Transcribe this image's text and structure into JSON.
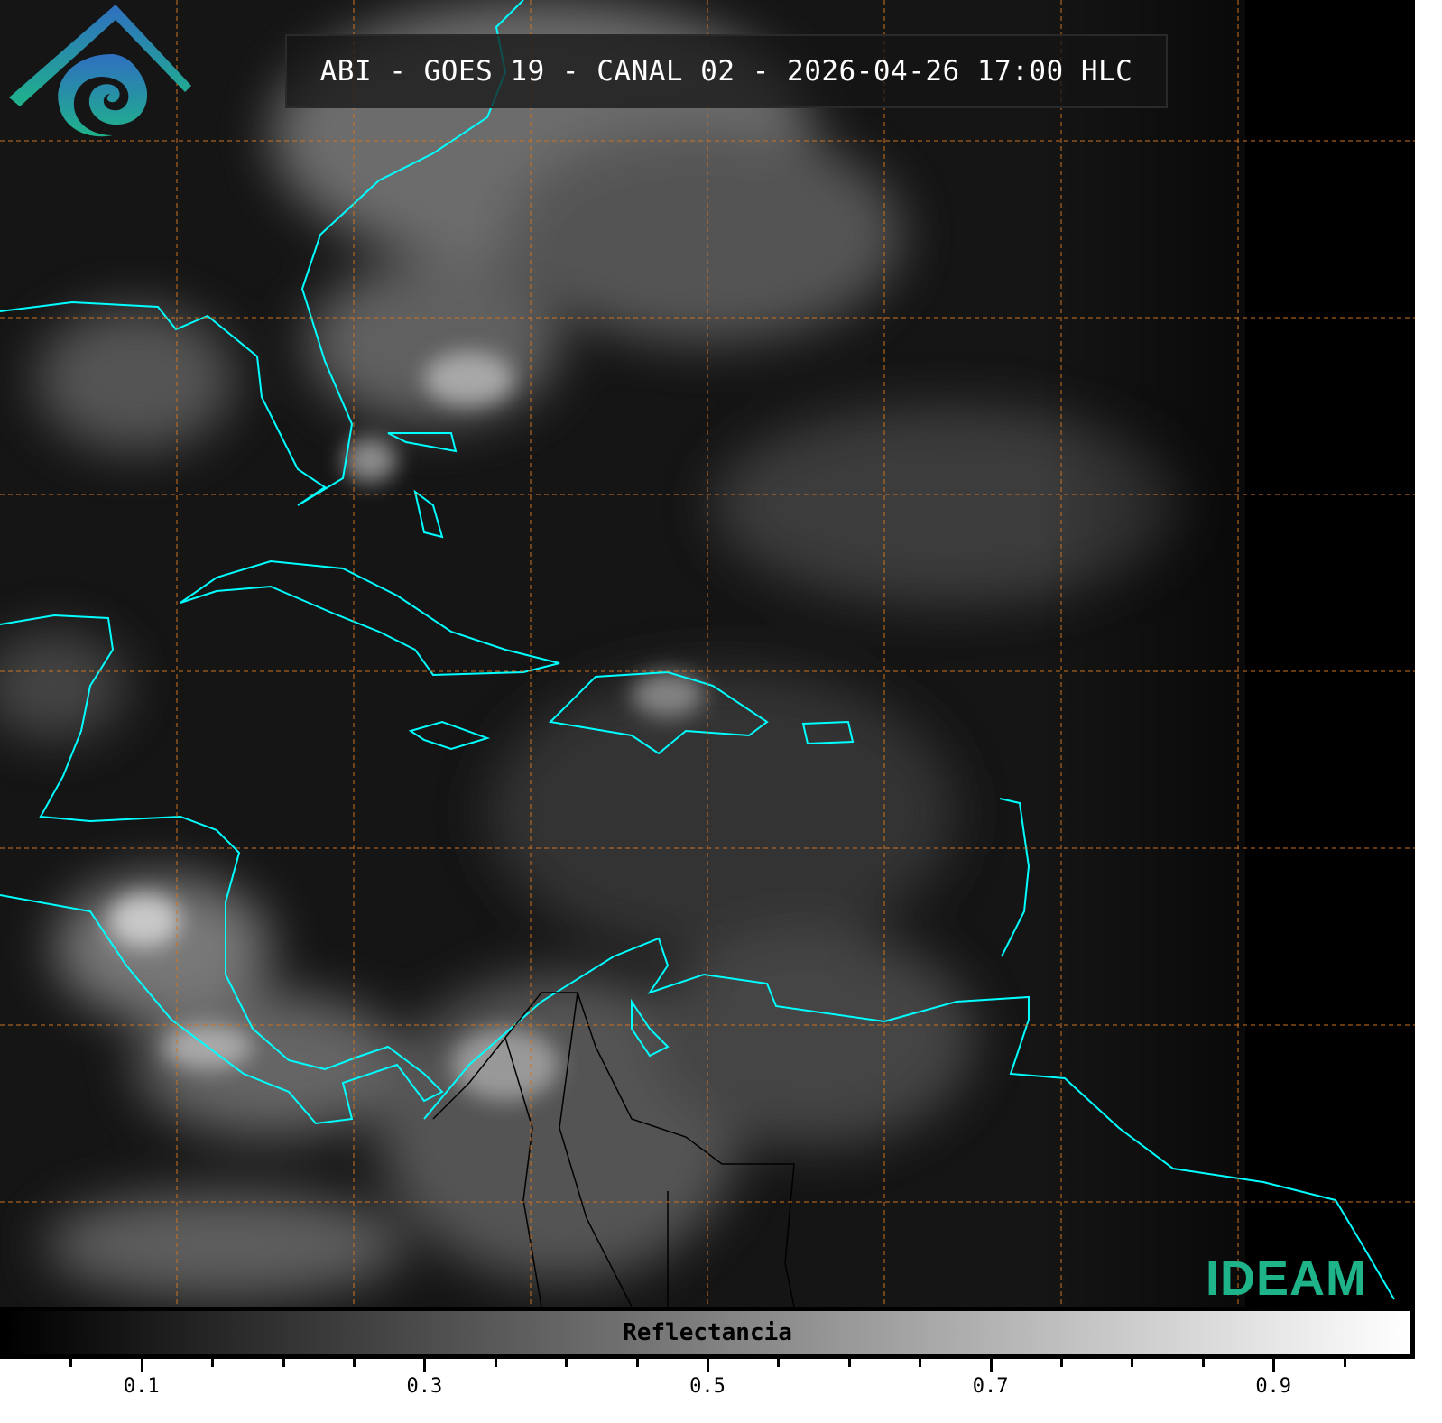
{
  "title": "ABI - GOES 19 - CANAL 02 - 2026-04-26 17:00 HLC",
  "logo": {
    "text": "IDEAM",
    "colors": [
      "#2f6fc0",
      "#1fb38a"
    ]
  },
  "map": {
    "coastline_color": "#00ffff",
    "border_color": "#000000",
    "grid_color": "#d07020",
    "grid_style": "dashed",
    "background": "grayscale reflectance"
  },
  "colorbar": {
    "label": "Reflectancia",
    "range": [
      0,
      1
    ],
    "colormap": "grayscale",
    "tick_labels": [
      "0.1",
      "0.3",
      "0.5",
      "0.7",
      "0.9"
    ],
    "tick_values": [
      0.1,
      0.3,
      0.5,
      0.7,
      0.9
    ],
    "minor_step": 0.05
  }
}
